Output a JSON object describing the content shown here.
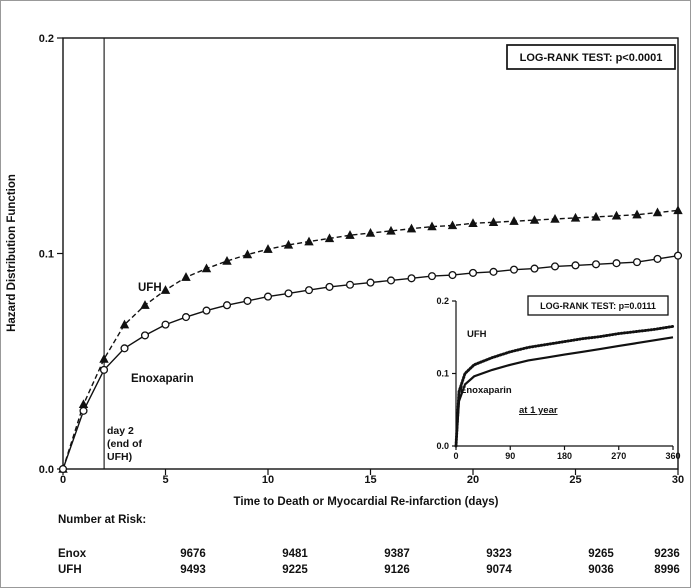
{
  "chart_data": [
    {
      "id": "main",
      "type": "line",
      "title": "",
      "xlabel": "Time to Death or Myocardial Re-infarction (days)",
      "ylabel": "Hazard Distribution Function",
      "xlim": [
        0,
        30
      ],
      "ylim": [
        0,
        0.2
      ],
      "x_ticks": [
        0,
        5,
        10,
        15,
        20,
        25,
        30
      ],
      "x_tick_labels": [
        "0",
        "5",
        "10",
        "15",
        "20",
        "25",
        "30"
      ],
      "y_ticks": [
        0,
        0.1,
        0.2
      ],
      "y_tick_labels": [
        "0.0",
        "0.1",
        "0.2"
      ],
      "grid": false,
      "annotation": "LOG-RANK TEST: p<0.0001",
      "reference_line": {
        "x": 2,
        "label_lines": [
          "day 2",
          "(end of",
          "UFH)"
        ]
      },
      "series": [
        {
          "name": "UFH",
          "line": "dashed",
          "marker": "triangle",
          "x": [
            0,
            1,
            2,
            3,
            4,
            5,
            6,
            7,
            8,
            9,
            10,
            11,
            12,
            13,
            14,
            15,
            16,
            17,
            18,
            19,
            20,
            21,
            22,
            23,
            24,
            25,
            26,
            27,
            28,
            29,
            30
          ],
          "y": [
            0,
            0.03,
            0.051,
            0.067,
            0.076,
            0.083,
            0.089,
            0.093,
            0.0965,
            0.0995,
            0.102,
            0.104,
            0.1055,
            0.107,
            0.1085,
            0.1095,
            0.1105,
            0.1115,
            0.1125,
            0.113,
            0.114,
            0.1145,
            0.115,
            0.1155,
            0.116,
            0.1165,
            0.117,
            0.1175,
            0.118,
            0.119,
            0.12
          ]
        },
        {
          "name": "Enoxaparin",
          "line": "solid",
          "marker": "circle",
          "x": [
            0,
            1,
            2,
            3,
            4,
            5,
            6,
            7,
            8,
            9,
            10,
            11,
            12,
            13,
            14,
            15,
            16,
            17,
            18,
            19,
            20,
            21,
            22,
            23,
            24,
            25,
            26,
            27,
            28,
            29,
            30
          ],
          "y": [
            0,
            0.027,
            0.046,
            0.056,
            0.062,
            0.067,
            0.0705,
            0.0735,
            0.076,
            0.078,
            0.08,
            0.0815,
            0.083,
            0.0845,
            0.0855,
            0.0865,
            0.0875,
            0.0885,
            0.0895,
            0.09,
            0.091,
            0.0915,
            0.0925,
            0.093,
            0.094,
            0.0945,
            0.095,
            0.0955,
            0.096,
            0.0975,
            0.099
          ]
        }
      ]
    },
    {
      "id": "inset",
      "type": "line",
      "title": "",
      "caption": "at 1 year",
      "xlabel": "",
      "ylabel": "",
      "xlim": [
        0,
        360
      ],
      "ylim": [
        0,
        0.2
      ],
      "x_ticks": [
        0,
        90,
        180,
        270,
        360
      ],
      "x_tick_labels": [
        "0",
        "90",
        "180",
        "270",
        "360"
      ],
      "y_ticks": [
        0,
        0.1,
        0.2
      ],
      "y_tick_labels": [
        "0.0",
        "0.1",
        "0.2"
      ],
      "grid": false,
      "annotation": "LOG-RANK TEST: p=0.0111",
      "series": [
        {
          "name": "UFH",
          "line": "textured",
          "marker": "none",
          "x": [
            0,
            5,
            15,
            30,
            60,
            90,
            120,
            150,
            180,
            210,
            240,
            270,
            300,
            330,
            360
          ],
          "y": [
            0,
            0.075,
            0.1,
            0.112,
            0.122,
            0.13,
            0.136,
            0.14,
            0.144,
            0.148,
            0.151,
            0.155,
            0.158,
            0.161,
            0.165
          ]
        },
        {
          "name": "Enoxaparin",
          "line": "solid",
          "marker": "none",
          "x": [
            0,
            5,
            15,
            30,
            60,
            90,
            120,
            150,
            180,
            210,
            240,
            270,
            300,
            330,
            360
          ],
          "y": [
            0,
            0.062,
            0.085,
            0.096,
            0.105,
            0.112,
            0.118,
            0.122,
            0.126,
            0.13,
            0.134,
            0.138,
            0.142,
            0.146,
            0.15
          ]
        }
      ]
    }
  ],
  "risk_table": {
    "title": "Number at Risk:",
    "rows": [
      {
        "label": "Enox",
        "values": [
          "9676",
          "9481",
          "9387",
          "9323",
          "9265",
          "9236"
        ]
      },
      {
        "label": "UFH",
        "values": [
          "9493",
          "9225",
          "9126",
          "9074",
          "9036",
          "8996"
        ]
      }
    ]
  }
}
